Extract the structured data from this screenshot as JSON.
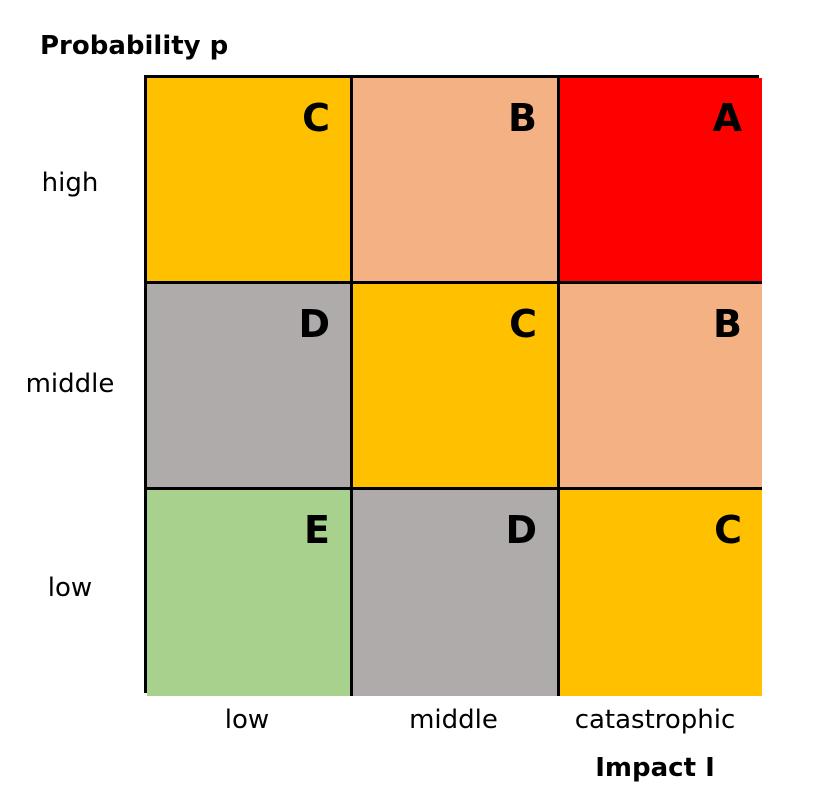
{
  "y_axis": {
    "title": "Probability p",
    "labels": [
      "high",
      "middle",
      "low"
    ]
  },
  "x_axis": {
    "title": "Impact I",
    "labels": [
      "low",
      "middle",
      "catastrophic"
    ]
  },
  "matrix": {
    "rows": [
      [
        {
          "letter": "C",
          "color": "#FFC000"
        },
        {
          "letter": "B",
          "color": "#F4B183"
        },
        {
          "letter": "A",
          "color": "#FF0000"
        }
      ],
      [
        {
          "letter": "D",
          "color": "#AFABAB"
        },
        {
          "letter": "C",
          "color": "#FFC000"
        },
        {
          "letter": "B",
          "color": "#F4B183"
        }
      ],
      [
        {
          "letter": "E",
          "color": "#A9D18E"
        },
        {
          "letter": "D",
          "color": "#AFABAB"
        },
        {
          "letter": "C",
          "color": "#FFC000"
        }
      ]
    ]
  }
}
